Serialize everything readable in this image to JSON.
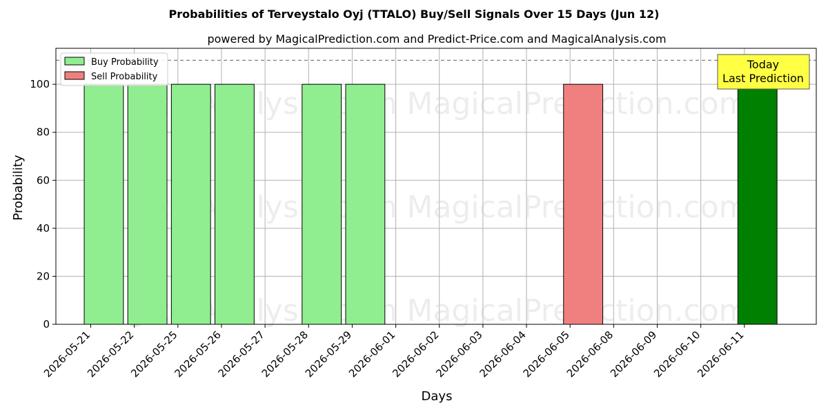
{
  "chart_data": {
    "type": "bar",
    "title": "Probabilities of Terveystalo Oyj (TTALO) Buy/Sell Signals Over 15 Days (Jun 12)",
    "subtitle": "powered by MagicalPrediction.com and Predict-Price.com and MagicalAnalysis.com",
    "xlabel": "Days",
    "ylabel": "Probability",
    "ylim": [
      0,
      115
    ],
    "yticks": [
      0,
      20,
      40,
      60,
      80,
      100
    ],
    "reference_line": 110,
    "grid": true,
    "legend_position": "top-left",
    "categories": [
      "2026-05-21",
      "2026-05-22",
      "2026-05-25",
      "2026-05-26",
      "2026-05-27",
      "2026-05-28",
      "2026-05-29",
      "2026-06-01",
      "2026-06-02",
      "2026-06-03",
      "2026-06-04",
      "2026-06-05",
      "2026-06-08",
      "2026-06-09",
      "2026-06-10",
      "2026-06-11"
    ],
    "bars": [
      {
        "x": 0.3,
        "value": 100,
        "series": "buy"
      },
      {
        "x": 1.3,
        "value": 100,
        "series": "buy"
      },
      {
        "x": 2.3,
        "value": 100,
        "series": "buy"
      },
      {
        "x": 3.3,
        "value": 100,
        "series": "buy"
      },
      {
        "x": 5.3,
        "value": 100,
        "series": "buy"
      },
      {
        "x": 6.3,
        "value": 100,
        "series": "buy"
      },
      {
        "x": 11.3,
        "value": 100,
        "series": "sell"
      },
      {
        "x": 15.3,
        "value": 100,
        "series": "today"
      }
    ],
    "series": [
      {
        "key": "buy",
        "name": "Buy Probability",
        "color": "#90ee90"
      },
      {
        "key": "sell",
        "name": "Sell Probability",
        "color": "#f08080"
      }
    ],
    "today_color": "#008000",
    "annotation": {
      "lines": [
        "Today",
        "Last Prediction"
      ],
      "background": "#ffff44"
    },
    "watermarks": [
      "MagicalAnalysis.com",
      "MagicalPrediction.com"
    ]
  }
}
